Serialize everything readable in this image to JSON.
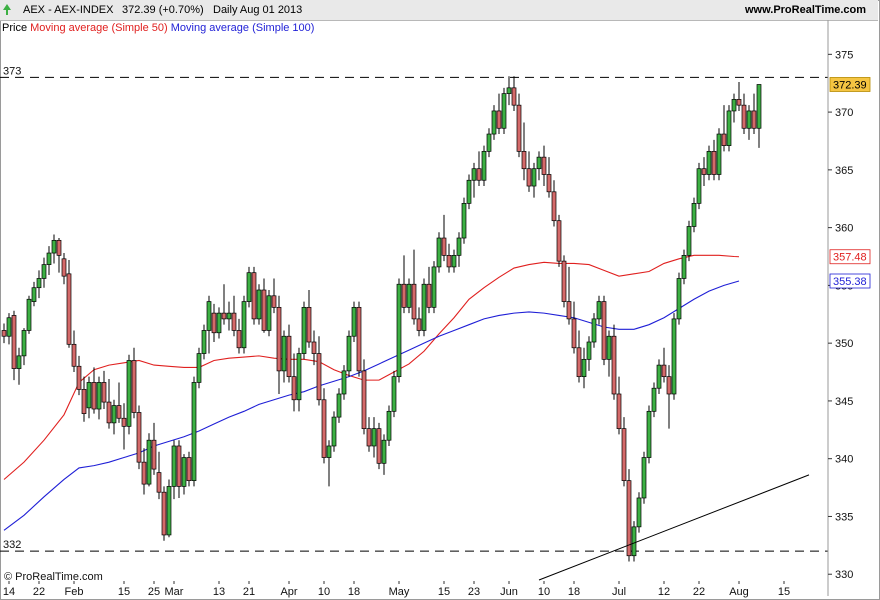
{
  "header": {
    "symbol": "AEX - AEX-INDEX",
    "quote": "372.39 (+0.70%)",
    "period": "Daily  Aug 01 2013",
    "site": "www.ProRealTime.com"
  },
  "legend": {
    "price_label": "Price",
    "ma50_label": "Moving average (Simple 50)",
    "ma100_label": "Moving average (Simple 100)"
  },
  "footer": {
    "copyright": "© ProRealTime.com"
  },
  "colors": {
    "up": "#3cb043",
    "down": "#d46a6a",
    "ma50": "#e0201f",
    "ma100": "#1f1fd6",
    "last_price_bg": "#f5c542",
    "grid_dash": "#000000",
    "trendline": "#000000"
  },
  "chart_data": {
    "type": "candlestick",
    "ylim": [
      329.5,
      376.5
    ],
    "y_ticks": [
      330,
      335,
      340,
      345,
      350,
      355,
      360,
      365,
      370,
      375
    ],
    "x_ticks": [
      {
        "label": "14",
        "bar": 1
      },
      {
        "label": "22",
        "bar": 7
      },
      {
        "label": "Feb",
        "bar": 14
      },
      {
        "label": "15",
        "bar": 24
      },
      {
        "label": "25",
        "bar": 30
      },
      {
        "label": "Mar",
        "bar": 34
      },
      {
        "label": "13",
        "bar": 43
      },
      {
        "label": "21",
        "bar": 49
      },
      {
        "label": "Apr",
        "bar": 57
      },
      {
        "label": "10",
        "bar": 64
      },
      {
        "label": "18",
        "bar": 70
      },
      {
        "label": "May",
        "bar": 79
      },
      {
        "label": "15",
        "bar": 88
      },
      {
        "label": "23",
        "bar": 94
      },
      {
        "label": "Jun",
        "bar": 101
      },
      {
        "label": "10",
        "bar": 108
      },
      {
        "label": "18",
        "bar": 114
      },
      {
        "label": "Jul",
        "bar": 123
      },
      {
        "label": "12",
        "bar": 132
      },
      {
        "label": "22",
        "bar": 139
      },
      {
        "label": "Aug",
        "bar": 147
      },
      {
        "label": "15",
        "bar": 156
      }
    ],
    "h_levels": [
      {
        "label": "373",
        "value": 373
      },
      {
        "label": "332",
        "value": 332
      }
    ],
    "markers": [
      {
        "label": "372.39",
        "value": 372.39,
        "style": "last"
      },
      {
        "label": "357.48",
        "value": 357.48,
        "style": "ma50"
      },
      {
        "label": "355.38",
        "value": 355.38,
        "style": "ma100"
      }
    ],
    "trendline": [
      {
        "bar": 107,
        "value": 329.5
      },
      {
        "bar": 161,
        "value": 338.6
      }
    ],
    "candles": [
      [
        351.1,
        351.7,
        350.0,
        350.6
      ],
      [
        350.6,
        352.6,
        349.9,
        352.2
      ],
      [
        352.4,
        352.8,
        346.8,
        347.8
      ],
      [
        347.8,
        349.6,
        346.4,
        348.9
      ],
      [
        348.9,
        351.3,
        348.1,
        351.1
      ],
      [
        351.1,
        354.1,
        350.8,
        353.8
      ],
      [
        353.6,
        355.3,
        353.2,
        354.8
      ],
      [
        354.8,
        356.3,
        353.9,
        355.6
      ],
      [
        355.6,
        357.4,
        354.8,
        356.8
      ],
      [
        356.8,
        358.4,
        355.9,
        357.8
      ],
      [
        357.8,
        359.4,
        356.9,
        358.9
      ],
      [
        358.9,
        359.1,
        356.1,
        357.6
      ],
      [
        357.3,
        357.8,
        355.1,
        355.8
      ],
      [
        356.0,
        357.2,
        349.6,
        349.9
      ],
      [
        349.9,
        351.1,
        347.5,
        348.0
      ],
      [
        348.0,
        348.9,
        345.5,
        346.0
      ],
      [
        346.0,
        347.1,
        343.2,
        343.9
      ],
      [
        344.4,
        347.1,
        343.5,
        346.6
      ],
      [
        346.6,
        347.9,
        343.9,
        344.3
      ],
      [
        344.3,
        347.1,
        343.4,
        346.6
      ],
      [
        346.6,
        347.6,
        344.3,
        344.9
      ],
      [
        344.9,
        346.9,
        342.6,
        343.1
      ],
      [
        343.1,
        345.1,
        342.1,
        344.6
      ],
      [
        344.6,
        346.6,
        343.1,
        343.5
      ],
      [
        343.5,
        344.8,
        340.8,
        342.8
      ],
      [
        342.8,
        349.0,
        342.1,
        348.5
      ],
      [
        348.5,
        349.6,
        343.5,
        344.0
      ],
      [
        344.0,
        344.6,
        339.1,
        339.7
      ],
      [
        339.7,
        340.9,
        336.9,
        337.8
      ],
      [
        337.8,
        342.2,
        337.6,
        341.6
      ],
      [
        341.6,
        343.1,
        338.6,
        339.1
      ],
      [
        338.8,
        340.6,
        336.5,
        337.1
      ],
      [
        337.1,
        337.6,
        332.9,
        333.4
      ],
      [
        333.4,
        338.2,
        333.2,
        337.6
      ],
      [
        337.6,
        341.6,
        336.5,
        341.1
      ],
      [
        341.1,
        341.6,
        336.6,
        337.6
      ],
      [
        337.6,
        340.4,
        336.9,
        340.1
      ],
      [
        340.1,
        340.6,
        337.6,
        338.1
      ],
      [
        338.1,
        347.1,
        337.6,
        346.6
      ],
      [
        346.6,
        349.6,
        346.1,
        349.1
      ],
      [
        349.1,
        351.6,
        348.6,
        351.1
      ],
      [
        351.1,
        354.1,
        349.1,
        353.6
      ],
      [
        352.6,
        353.4,
        350.1,
        350.9
      ],
      [
        350.9,
        353.1,
        350.4,
        352.6
      ],
      [
        352.6,
        355.1,
        351.6,
        352.1
      ],
      [
        352.1,
        353.6,
        351.1,
        352.6
      ],
      [
        352.6,
        354.1,
        350.6,
        351.1
      ],
      [
        351.1,
        352.1,
        349.1,
        349.6
      ],
      [
        349.6,
        354.1,
        349.1,
        353.6
      ],
      [
        353.6,
        356.6,
        353.1,
        356.1
      ],
      [
        356.1,
        356.6,
        351.6,
        352.1
      ],
      [
        352.1,
        355.1,
        351.6,
        354.6
      ],
      [
        354.6,
        355.6,
        350.9,
        351.1
      ],
      [
        351.1,
        354.6,
        350.6,
        354.1
      ],
      [
        354.1,
        355.6,
        352.6,
        353.1
      ],
      [
        353.1,
        354.1,
        345.6,
        347.6
      ],
      [
        347.6,
        351.1,
        346.6,
        350.6
      ],
      [
        350.6,
        351.6,
        346.6,
        347.1
      ],
      [
        347.1,
        349.1,
        344.1,
        345.1
      ],
      [
        345.1,
        349.6,
        344.1,
        349.1
      ],
      [
        349.1,
        353.6,
        348.6,
        353.1
      ],
      [
        353.1,
        354.6,
        349.6,
        350.1
      ],
      [
        350.1,
        351.1,
        348.1,
        349.1
      ],
      [
        349.1,
        350.6,
        344.6,
        345.1
      ],
      [
        345.1,
        346.1,
        339.6,
        340.1
      ],
      [
        340.1,
        341.6,
        337.6,
        341.1
      ],
      [
        341.1,
        344.1,
        340.6,
        343.6
      ],
      [
        343.6,
        346.1,
        343.1,
        345.6
      ],
      [
        345.6,
        348.1,
        345.1,
        347.6
      ],
      [
        347.6,
        351.1,
        347.1,
        350.6
      ],
      [
        350.6,
        353.6,
        350.1,
        353.1
      ],
      [
        353.1,
        353.6,
        347.1,
        347.6
      ],
      [
        347.6,
        348.6,
        342.1,
        342.6
      ],
      [
        342.6,
        343.6,
        340.6,
        341.1
      ],
      [
        341.1,
        343.6,
        340.1,
        342.6
      ],
      [
        342.6,
        343.1,
        339.1,
        339.6
      ],
      [
        339.6,
        342.1,
        338.6,
        341.6
      ],
      [
        341.6,
        344.6,
        341.1,
        344.1
      ],
      [
        344.1,
        347.6,
        343.6,
        347.1
      ],
      [
        347.1,
        355.6,
        346.6,
        355.1
      ],
      [
        355.1,
        357.6,
        352.6,
        353.1
      ],
      [
        353.1,
        355.6,
        352.6,
        355.1
      ],
      [
        355.1,
        358.1,
        351.6,
        352.1
      ],
      [
        352.1,
        353.1,
        350.6,
        351.1
      ],
      [
        351.1,
        355.6,
        350.6,
        355.1
      ],
      [
        355.1,
        356.6,
        352.6,
        353.1
      ],
      [
        353.1,
        357.1,
        352.6,
        356.6
      ],
      [
        356.6,
        359.6,
        356.1,
        359.1
      ],
      [
        359.1,
        361.1,
        357.1,
        357.6
      ],
      [
        357.6,
        358.6,
        356.1,
        356.6
      ],
      [
        356.6,
        358.1,
        356.1,
        357.6
      ],
      [
        357.6,
        359.6,
        356.6,
        359.1
      ],
      [
        359.1,
        362.6,
        358.6,
        362.1
      ],
      [
        362.1,
        364.6,
        361.6,
        364.1
      ],
      [
        364.1,
        365.6,
        362.6,
        365.1
      ],
      [
        365.1,
        366.6,
        363.6,
        364.1
      ],
      [
        364.1,
        367.1,
        363.6,
        366.6
      ],
      [
        366.6,
        368.6,
        366.1,
        368.1
      ],
      [
        368.1,
        370.6,
        367.6,
        370.1
      ],
      [
        370.1,
        371.6,
        368.1,
        368.6
      ],
      [
        368.6,
        372.1,
        368.1,
        371.6
      ],
      [
        371.6,
        373.1,
        370.6,
        372.1
      ],
      [
        372.1,
        373.1,
        370.1,
        370.6
      ],
      [
        370.6,
        371.6,
        366.1,
        366.6
      ],
      [
        366.6,
        369.1,
        364.1,
        365.1
      ],
      [
        365.1,
        366.6,
        363.1,
        363.6
      ],
      [
        363.6,
        365.6,
        362.6,
        365.1
      ],
      [
        365.1,
        366.6,
        364.1,
        366.1
      ],
      [
        366.1,
        367.1,
        363.6,
        364.6
      ],
      [
        364.6,
        366.1,
        362.6,
        363.1
      ],
      [
        363.1,
        364.1,
        360.1,
        360.6
      ],
      [
        360.6,
        361.1,
        356.6,
        357.1
      ],
      [
        357.1,
        357.6,
        353.1,
        353.6
      ],
      [
        353.6,
        356.6,
        351.6,
        352.1
      ],
      [
        352.1,
        353.6,
        349.1,
        349.6
      ],
      [
        349.6,
        351.1,
        346.6,
        347.1
      ],
      [
        347.1,
        349.6,
        346.1,
        348.6
      ],
      [
        348.6,
        350.6,
        347.6,
        350.1
      ],
      [
        350.1,
        352.6,
        349.6,
        352.1
      ],
      [
        352.1,
        354.1,
        351.6,
        353.6
      ],
      [
        353.6,
        354.1,
        348.1,
        348.6
      ],
      [
        348.6,
        351.1,
        347.1,
        350.6
      ],
      [
        350.6,
        351.6,
        345.1,
        345.6
      ],
      [
        345.6,
        347.1,
        342.1,
        342.6
      ],
      [
        342.6,
        343.6,
        337.6,
        338.1
      ],
      [
        338.1,
        339.1,
        331.1,
        331.6
      ],
      [
        331.6,
        334.6,
        331.1,
        334.1
      ],
      [
        334.1,
        337.1,
        333.6,
        336.6
      ],
      [
        336.6,
        340.6,
        336.1,
        340.1
      ],
      [
        340.1,
        344.6,
        339.6,
        344.1
      ],
      [
        344.1,
        346.6,
        343.6,
        346.1
      ],
      [
        346.1,
        348.6,
        345.6,
        348.1
      ],
      [
        348.1,
        349.6,
        346.6,
        347.1
      ],
      [
        347.1,
        348.1,
        342.6,
        345.6
      ],
      [
        345.6,
        352.6,
        345.1,
        352.1
      ],
      [
        352.1,
        356.1,
        351.6,
        355.6
      ],
      [
        355.6,
        358.1,
        355.1,
        357.6
      ],
      [
        357.6,
        360.6,
        357.1,
        360.1
      ],
      [
        360.1,
        362.6,
        359.6,
        362.1
      ],
      [
        362.1,
        365.6,
        361.6,
        365.1
      ],
      [
        365.1,
        366.1,
        363.6,
        364.6
      ],
      [
        364.6,
        367.1,
        364.1,
        366.6
      ],
      [
        366.6,
        367.6,
        364.1,
        364.6
      ],
      [
        364.6,
        368.6,
        364.1,
        368.1
      ],
      [
        368.1,
        370.6,
        366.6,
        367.1
      ],
      [
        367.1,
        370.6,
        366.6,
        370.1
      ],
      [
        370.1,
        371.6,
        369.1,
        371.1
      ],
      [
        371.1,
        372.6,
        370.1,
        370.6
      ],
      [
        370.6,
        371.6,
        368.1,
        368.6
      ],
      [
        368.6,
        370.6,
        367.6,
        370.1
      ],
      [
        370.1,
        371.6,
        368.1,
        368.6
      ],
      [
        368.6,
        372.4,
        366.9,
        372.39
      ]
    ],
    "ma50_curve": [
      [
        0,
        338.2
      ],
      [
        4,
        339.7
      ],
      [
        8,
        341.6
      ],
      [
        12,
        343.8
      ],
      [
        15,
        346.6
      ],
      [
        18,
        347.7
      ],
      [
        21,
        348.1
      ],
      [
        24,
        348.3
      ],
      [
        27,
        348.5
      ],
      [
        30,
        348.1
      ],
      [
        33,
        348.0
      ],
      [
        36,
        347.9
      ],
      [
        39,
        347.9
      ],
      [
        42,
        348.5
      ],
      [
        45,
        348.7
      ],
      [
        48,
        348.8
      ],
      [
        51,
        348.9
      ],
      [
        54,
        348.7
      ],
      [
        57,
        348.6
      ],
      [
        60,
        348.6
      ],
      [
        63,
        348.4
      ],
      [
        66,
        347.7
      ],
      [
        69,
        347.2
      ],
      [
        72,
        346.8
      ],
      [
        75,
        346.8
      ],
      [
        78,
        347.5
      ],
      [
        81,
        348.2
      ],
      [
        84,
        349.3
      ],
      [
        87,
        350.8
      ],
      [
        90,
        352.2
      ],
      [
        93,
        353.8
      ],
      [
        96,
        354.8
      ],
      [
        99,
        355.7
      ],
      [
        102,
        356.5
      ],
      [
        105,
        356.8
      ],
      [
        108,
        357.0
      ],
      [
        111,
        356.9
      ],
      [
        114,
        356.9
      ],
      [
        117,
        356.8
      ],
      [
        120,
        356.3
      ],
      [
        123,
        355.8
      ],
      [
        126,
        356.0
      ],
      [
        129,
        356.2
      ],
      [
        132,
        356.9
      ],
      [
        135,
        357.3
      ],
      [
        138,
        357.6
      ],
      [
        141,
        357.6
      ],
      [
        143,
        357.6
      ],
      [
        146,
        357.5
      ],
      [
        147,
        357.48
      ]
    ],
    "ma100_curve": [
      [
        0,
        333.8
      ],
      [
        4,
        335.1
      ],
      [
        8,
        336.7
      ],
      [
        12,
        338.2
      ],
      [
        15,
        339.2
      ],
      [
        18,
        339.4
      ],
      [
        21,
        339.7
      ],
      [
        24,
        340.1
      ],
      [
        27,
        340.5
      ],
      [
        30,
        341.1
      ],
      [
        33,
        341.5
      ],
      [
        36,
        341.9
      ],
      [
        39,
        342.4
      ],
      [
        42,
        343.0
      ],
      [
        45,
        343.6
      ],
      [
        48,
        344.1
      ],
      [
        51,
        344.7
      ],
      [
        54,
        345.1
      ],
      [
        57,
        345.5
      ],
      [
        60,
        345.8
      ],
      [
        63,
        346.3
      ],
      [
        66,
        346.7
      ],
      [
        69,
        347.1
      ],
      [
        72,
        347.6
      ],
      [
        75,
        348.2
      ],
      [
        78,
        348.8
      ],
      [
        81,
        349.4
      ],
      [
        84,
        350.0
      ],
      [
        87,
        350.6
      ],
      [
        90,
        351.1
      ],
      [
        93,
        351.6
      ],
      [
        96,
        352.1
      ],
      [
        99,
        352.4
      ],
      [
        102,
        352.6
      ],
      [
        105,
        352.7
      ],
      [
        108,
        352.6
      ],
      [
        111,
        352.4
      ],
      [
        114,
        352.2
      ],
      [
        117,
        351.8
      ],
      [
        120,
        351.4
      ],
      [
        123,
        351.2
      ],
      [
        126,
        351.2
      ],
      [
        129,
        351.6
      ],
      [
        132,
        352.2
      ],
      [
        135,
        353.0
      ],
      [
        138,
        353.8
      ],
      [
        141,
        354.5
      ],
      [
        144,
        355.0
      ],
      [
        147,
        355.38
      ]
    ]
  }
}
